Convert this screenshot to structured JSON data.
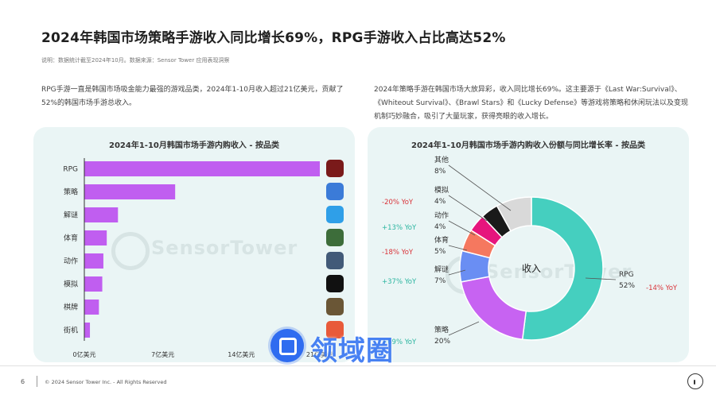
{
  "header": {
    "title": "2024年韩国市场策略手游收入同比增长69%，RPG手游收入占比高达52%",
    "note": "说明：数据统计截至2024年10月。数据来源：Sensor Tower 应用表现洞察"
  },
  "paragraphs": {
    "left": "RPG手游一直是韩国市场吸金能力最强的游戏品类，2024年1-10月收入超过21亿美元，贡献了52%的韩国市场手游总收入。",
    "right": "2024年策略手游在韩国市场大放异彩，收入同比增长69%。这主要源于《Last War:Survival》、《Whiteout Survival》、《Brawl Stars》和《Lucky Defense》等游戏将策略和休闲玩法以及变现机制巧妙融合，吸引了大量玩家，获得亮眼的收入增长。"
  },
  "watermark": "SensorTower",
  "overlay_brand": "领域圈",
  "footer": {
    "page": "6",
    "copyright": "© 2024 Sensor Tower Inc. - All Rights Reserved"
  },
  "colors": {
    "bar": "#c05ef0",
    "panel_bg": "#eaf5f5",
    "yoy_positive": "#2bb5a0",
    "yoy_negative": "#d9343a"
  },
  "chart_data": [
    {
      "type": "bar",
      "orientation": "horizontal",
      "title": "2024年1-10月韩国市场手游内购收入 - 按品类",
      "categories": [
        "RPG",
        "策略",
        "解谜",
        "体育",
        "动作",
        "模拟",
        "棋牌",
        "街机"
      ],
      "values": [
        21.2,
        8.1,
        3.0,
        2.0,
        1.7,
        1.6,
        1.3,
        0.5
      ],
      "unit": "亿美元",
      "xlim": [
        0,
        21
      ],
      "xticks": [
        "0亿美元",
        "7亿美元",
        "14亿美元",
        "21亿美元"
      ],
      "xtick_values": [
        0,
        7,
        14,
        21
      ],
      "icons": [
        "game-icon-rpg",
        "game-icon-strategy",
        "game-icon-puzzle",
        "game-icon-sports",
        "game-icon-action",
        "game-icon-simulation",
        "game-icon-casino",
        "game-icon-arcade"
      ]
    },
    {
      "type": "pie",
      "donut": true,
      "title": "2024年1-10月韩国市场手游内购收入份额与同比增长率 - 按品类",
      "center_label": "收入",
      "slices": [
        {
          "name": "RPG",
          "value": 52,
          "label": "52%",
          "yoy": "-14% YoY",
          "color": "#45cfbf"
        },
        {
          "name": "策略",
          "value": 20,
          "label": "20%",
          "yoy": "+69% YoY",
          "color": "#c763f2"
        },
        {
          "name": "解谜",
          "value": 7,
          "label": "7%",
          "yoy": "+37% YoY",
          "color": "#6a8ef3"
        },
        {
          "name": "体育",
          "value": 5,
          "label": "5%",
          "yoy": "-18% YoY",
          "color": "#f5785f"
        },
        {
          "name": "动作",
          "value": 4,
          "label": "4%",
          "yoy": "+13% YoY",
          "color": "#e6157d"
        },
        {
          "name": "模拟",
          "value": 4,
          "label": "4%",
          "yoy": "-20% YoY",
          "color": "#1a1a1a"
        },
        {
          "name": "其他",
          "value": 8,
          "label": "8%",
          "yoy": "",
          "color": "#d9d9d9"
        }
      ]
    }
  ]
}
